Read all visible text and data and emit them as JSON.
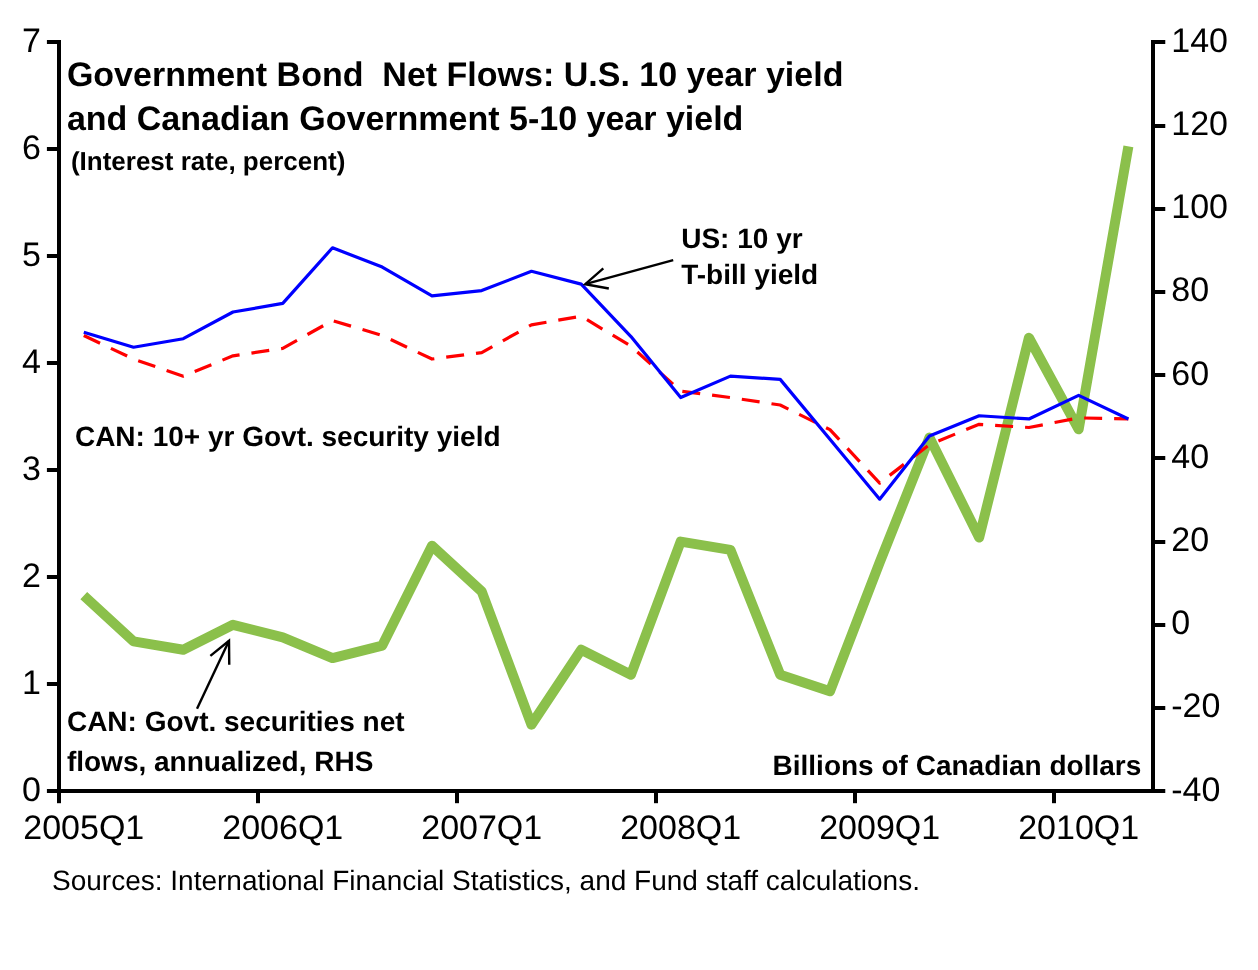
{
  "chart_data": {
    "type": "line",
    "title": "Government Bond  Net Flows: U.S. 10 year yield and Canadian Government 5-10 year yield",
    "subtitle": "(Interest rate, percent)",
    "y2label": "Billions of Canadian dollars",
    "annotations": [
      "Sources: International Financial Statistics, and Fund staff calculations."
    ],
    "categories": [
      "2005Q1",
      null,
      null,
      null,
      "2006Q1",
      null,
      null,
      null,
      "2007Q1",
      null,
      null,
      null,
      "2008Q1",
      null,
      null,
      null,
      "2009Q1",
      null,
      null,
      null,
      "2010Q1",
      null
    ],
    "series": [
      {
        "name": "US: 10 yr T-bill yield",
        "color": "#0000ff",
        "line_style": "solid",
        "axis": "y",
        "values": [
          4.29,
          4.15,
          4.23,
          4.48,
          4.56,
          5.08,
          4.9,
          4.63,
          4.68,
          4.86,
          4.74,
          4.25,
          3.68,
          3.88,
          3.85,
          3.29,
          2.73,
          3.32,
          3.51,
          3.48,
          3.7,
          3.48
        ]
      },
      {
        "name": "CAN: 10+ yr Govt. security yield",
        "color": "#ff0000",
        "line_style": "dashed",
        "axis": "y",
        "values": [
          4.26,
          4.04,
          3.88,
          4.07,
          4.14,
          4.4,
          4.26,
          4.04,
          4.1,
          4.36,
          4.44,
          4.16,
          3.74,
          3.68,
          3.61,
          3.38,
          2.88,
          3.24,
          3.43,
          3.4,
          3.49,
          3.48
        ]
      },
      {
        "name": "CAN: Govt. securities net flows, annualized, RHS",
        "color": "#8bc04b",
        "line_style": "solid",
        "axis": "y2",
        "values": [
          7,
          -4,
          -6,
          0,
          -3,
          -8,
          -5,
          19,
          8,
          -24,
          -6,
          -12,
          20,
          18,
          -12,
          -16,
          15,
          45,
          21,
          69,
          47,
          115
        ]
      }
    ],
    "ylim": [
      0,
      7
    ],
    "yticks": [
      0,
      1,
      2,
      3,
      4,
      5,
      6,
      7
    ],
    "y2lim": [
      -40,
      140
    ],
    "y2ticks": [
      -40,
      -20,
      0,
      20,
      40,
      60,
      80,
      100,
      120,
      140
    ],
    "grid": false,
    "legend": false,
    "marker": "none"
  }
}
